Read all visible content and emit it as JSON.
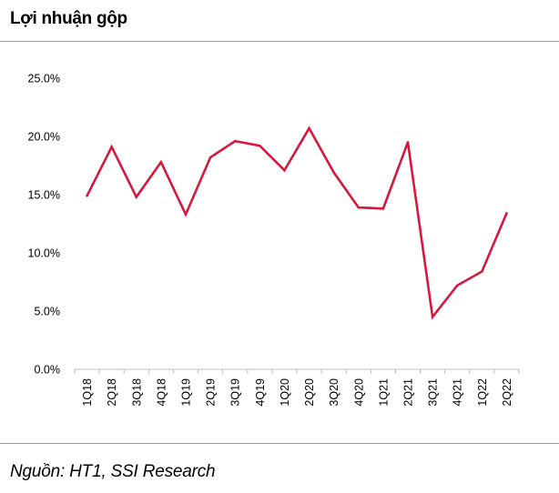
{
  "title": "Lợi nhuận gộp",
  "source": "Nguồn: HT1, SSI Research",
  "colors": {
    "line": "#d6183c",
    "axis": "#bfbfbf",
    "rule": "#9a9a9a"
  },
  "chart_data": {
    "type": "line",
    "title": "Lợi nhuận gộp",
    "xlabel": "",
    "ylabel": "",
    "categories": [
      "1Q18",
      "2Q18",
      "3Q18",
      "4Q18",
      "1Q19",
      "2Q19",
      "3Q19",
      "4Q19",
      "1Q20",
      "2Q20",
      "3Q20",
      "4Q20",
      "1Q21",
      "2Q21",
      "3Q21",
      "4Q21",
      "1Q22",
      "2Q22"
    ],
    "series": [
      {
        "values": [
          14.9,
          19.1,
          14.8,
          17.8,
          13.3,
          18.2,
          19.6,
          19.2,
          17.1,
          20.7,
          16.9,
          13.9,
          13.8,
          19.5,
          4.5,
          7.2,
          8.4,
          13.4
        ]
      }
    ],
    "ylim": [
      0,
      25
    ],
    "yticks": [
      0,
      5,
      10,
      15,
      20,
      25
    ],
    "ytick_labels": [
      "0.0%",
      "5.0%",
      "10.0%",
      "15.0%",
      "20.0%",
      "25.0%"
    ],
    "grid": false,
    "legend": "none"
  }
}
